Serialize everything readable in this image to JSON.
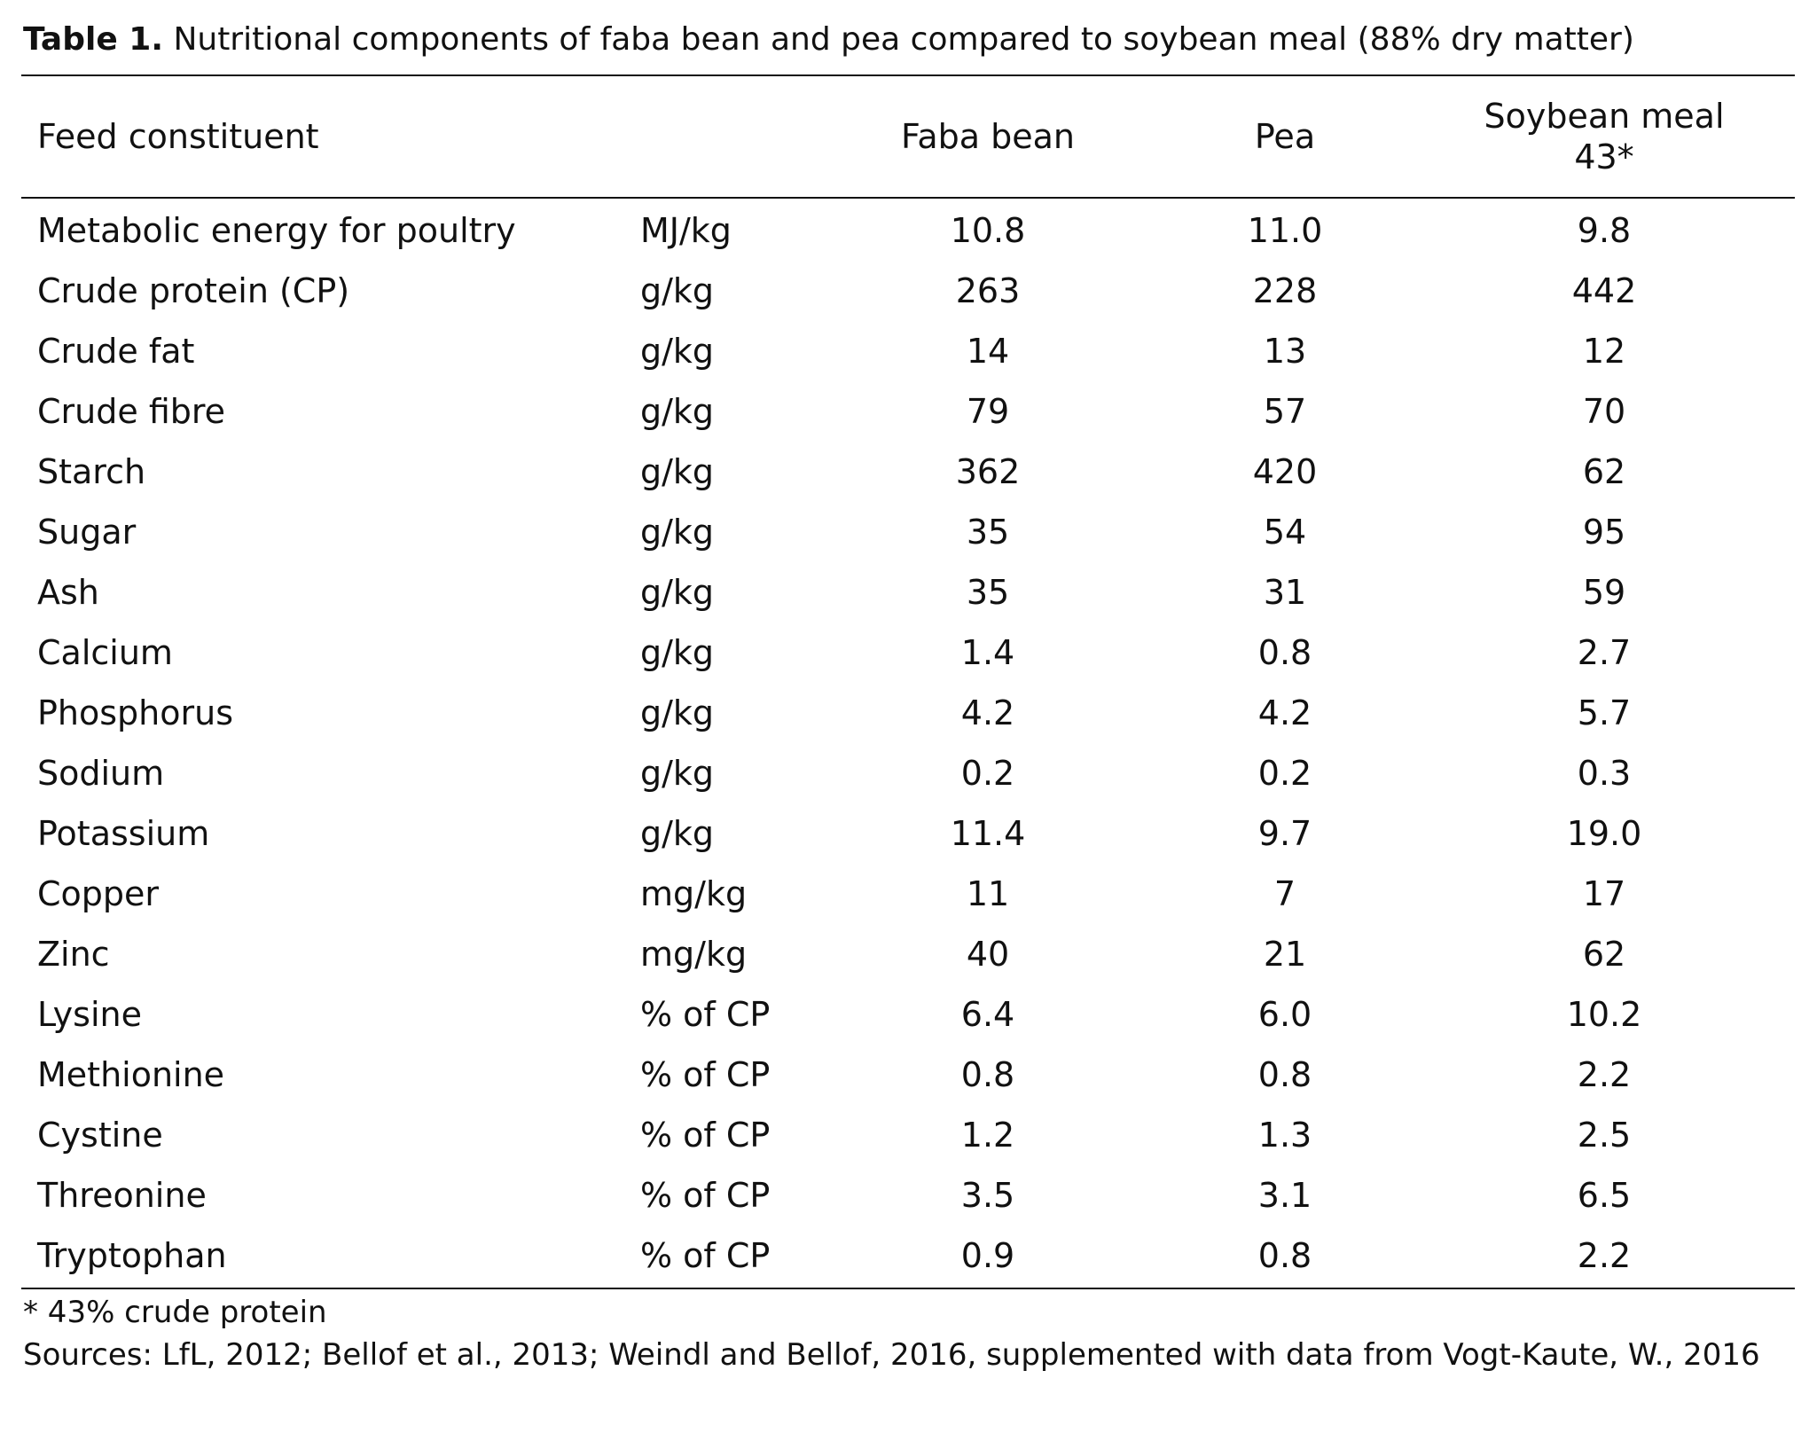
{
  "caption": {
    "label": "Table 1.",
    "text": " Nutritional components of faba bean and pea compared to soybean meal (88% dry matter)"
  },
  "table": {
    "headers": {
      "constituent": "Feed constituent",
      "unit": "",
      "faba": "Faba bean",
      "pea": "Pea",
      "soy_line1": "Soybean meal",
      "soy_line2": "43*"
    },
    "rows": [
      {
        "name": "Metabolic energy for poultry",
        "unit": "MJ/kg",
        "faba": "10.8",
        "pea": "11.0",
        "soy": "9.8"
      },
      {
        "name": "Crude protein (CP)",
        "unit": "g/kg",
        "faba": "263",
        "pea": "228",
        "soy": "442"
      },
      {
        "name": "Crude fat",
        "unit": "g/kg",
        "faba": "14",
        "pea": "13",
        "soy": "12"
      },
      {
        "name": "Crude fibre",
        "unit": "g/kg",
        "faba": "79",
        "pea": "57",
        "soy": "70"
      },
      {
        "name": "Starch",
        "unit": "g/kg",
        "faba": "362",
        "pea": "420",
        "soy": "62"
      },
      {
        "name": "Sugar",
        "unit": "g/kg",
        "faba": "35",
        "pea": "54",
        "soy": "95"
      },
      {
        "name": "Ash",
        "unit": "g/kg",
        "faba": "35",
        "pea": "31",
        "soy": "59"
      },
      {
        "name": "Calcium",
        "unit": "g/kg",
        "faba": "1.4",
        "pea": "0.8",
        "soy": "2.7"
      },
      {
        "name": "Phosphorus",
        "unit": "g/kg",
        "faba": "4.2",
        "pea": "4.2",
        "soy": "5.7"
      },
      {
        "name": "Sodium",
        "unit": "g/kg",
        "faba": "0.2",
        "pea": "0.2",
        "soy": "0.3"
      },
      {
        "name": "Potassium",
        "unit": "g/kg",
        "faba": "11.4",
        "pea": "9.7",
        "soy": "19.0"
      },
      {
        "name": "Copper",
        "unit": "mg/kg",
        "faba": "11",
        "pea": "7",
        "soy": "17"
      },
      {
        "name": "Zinc",
        "unit": "mg/kg",
        "faba": "40",
        "pea": "21",
        "soy": "62"
      },
      {
        "name": "Lysine",
        "unit": "% of CP",
        "faba": "6.4",
        "pea": "6.0",
        "soy": "10.2"
      },
      {
        "name": "Methionine",
        "unit": "% of CP",
        "faba": "0.8",
        "pea": "0.8",
        "soy": "2.2"
      },
      {
        "name": "Cystine",
        "unit": "% of CP",
        "faba": "1.2",
        "pea": "1.3",
        "soy": "2.5"
      },
      {
        "name": "Threonine",
        "unit": "% of CP",
        "faba": "3.5",
        "pea": "3.1",
        "soy": "6.5"
      },
      {
        "name": "Tryptophan",
        "unit": "% of CP",
        "faba": "0.9",
        "pea": "0.8",
        "soy": "2.2"
      }
    ]
  },
  "notes": {
    "footnote": "* 43% crude protein",
    "sources": "Sources: LfL, 2012; Bellof et al., 2013; Weindl and Bellof, 2016, supplemented with data from Vogt-Kaute, W., 2016"
  }
}
